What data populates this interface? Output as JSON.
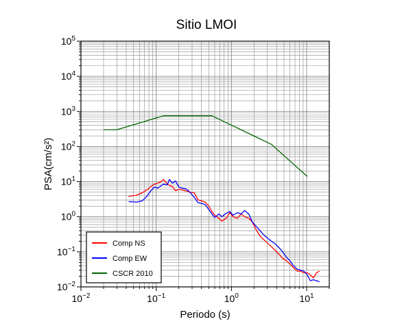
{
  "chart_data": {
    "type": "line",
    "title": "Sitio LMOI",
    "xlabel": "Periodo (s)",
    "ylabel": "PSA(cm/s²)",
    "x_scale": "log",
    "y_scale": "log",
    "xlim": [
      0.01,
      20
    ],
    "ylim": [
      0.01,
      100000
    ],
    "grid": true,
    "legend_position": "bottom-left",
    "x_ticks": [
      {
        "value": 0.01,
        "base": "10",
        "exp": "−2"
      },
      {
        "value": 0.1,
        "base": "10",
        "exp": "−1"
      },
      {
        "value": 1,
        "base": "10",
        "exp": "0"
      },
      {
        "value": 10,
        "base": "10",
        "exp": "1"
      }
    ],
    "y_ticks": [
      {
        "value": 0.01,
        "base": "10",
        "exp": "−2"
      },
      {
        "value": 0.1,
        "base": "10",
        "exp": "−1"
      },
      {
        "value": 1,
        "base": "10",
        "exp": "0"
      },
      {
        "value": 10,
        "base": "10",
        "exp": "1"
      },
      {
        "value": 100,
        "base": "10",
        "exp": "2"
      },
      {
        "value": 1000,
        "base": "10",
        "exp": "3"
      },
      {
        "value": 10000,
        "base": "10",
        "exp": "4"
      },
      {
        "value": 100000,
        "base": "10",
        "exp": "5"
      }
    ],
    "series": [
      {
        "name": "Comp NS",
        "color": "#ff0000",
        "x": [
          0.043,
          0.055,
          0.065,
          0.075,
          0.085,
          0.095,
          0.105,
          0.115,
          0.125,
          0.14,
          0.15,
          0.165,
          0.18,
          0.2,
          0.22,
          0.25,
          0.28,
          0.32,
          0.36,
          0.4,
          0.45,
          0.5,
          0.55,
          0.6,
          0.68,
          0.75,
          0.85,
          0.95,
          1.05,
          1.2,
          1.35,
          1.5,
          1.7,
          1.9,
          2.1,
          2.4,
          2.7,
          3.0,
          3.4,
          3.8,
          4.3,
          4.8,
          5.4,
          6.0,
          6.7,
          7.5,
          8.3,
          9.2,
          10.2,
          11.2,
          12.3,
          13.5,
          14.8
        ],
        "y": [
          3.8,
          4.1,
          4.8,
          5.8,
          7.2,
          8.5,
          9.0,
          9.8,
          11.5,
          8.5,
          7.8,
          7.2,
          5.5,
          6.0,
          5.8,
          5.4,
          5.0,
          4.8,
          3.0,
          2.8,
          2.6,
          2.0,
          1.4,
          1.1,
          0.9,
          0.75,
          0.9,
          1.3,
          1.0,
          0.9,
          1.2,
          1.0,
          0.9,
          0.7,
          0.45,
          0.28,
          0.22,
          0.18,
          0.14,
          0.11,
          0.085,
          0.065,
          0.055,
          0.045,
          0.035,
          0.028,
          0.028,
          0.025,
          0.025,
          0.022,
          0.018,
          0.025,
          0.028
        ]
      },
      {
        "name": "Comp EW",
        "color": "#0000ff",
        "x": [
          0.043,
          0.055,
          0.065,
          0.075,
          0.085,
          0.095,
          0.105,
          0.115,
          0.125,
          0.14,
          0.15,
          0.165,
          0.18,
          0.2,
          0.22,
          0.25,
          0.28,
          0.32,
          0.36,
          0.4,
          0.45,
          0.5,
          0.55,
          0.6,
          0.68,
          0.75,
          0.85,
          0.95,
          1.05,
          1.2,
          1.35,
          1.5,
          1.7,
          1.9,
          2.1,
          2.4,
          2.7,
          3.0,
          3.4,
          3.8,
          4.3,
          4.8,
          5.4,
          6.0,
          6.7,
          7.5,
          8.3,
          9.2,
          10.2,
          11.2,
          12.3,
          13.5,
          14.8
        ],
        "y": [
          2.7,
          2.6,
          2.8,
          3.8,
          5.5,
          7.0,
          6.5,
          7.5,
          8.5,
          8.0,
          11.5,
          9.0,
          10.5,
          7.0,
          6.5,
          6.2,
          5.0,
          3.6,
          2.5,
          2.4,
          2.2,
          1.6,
          1.2,
          0.95,
          1.2,
          1.0,
          1.25,
          1.4,
          1.1,
          1.3,
          1.2,
          1.5,
          1.2,
          0.7,
          0.55,
          0.4,
          0.3,
          0.25,
          0.2,
          0.17,
          0.13,
          0.1,
          0.07,
          0.055,
          0.04,
          0.032,
          0.03,
          0.028,
          0.022,
          0.015,
          0.016,
          0.015,
          0.014
        ]
      },
      {
        "name": "CSCR 2010",
        "color": "#006400",
        "x": [
          0.02,
          0.03,
          0.125,
          0.55,
          3.4,
          10.2
        ],
        "y": [
          300,
          300,
          750,
          750,
          115,
          14
        ]
      }
    ]
  }
}
